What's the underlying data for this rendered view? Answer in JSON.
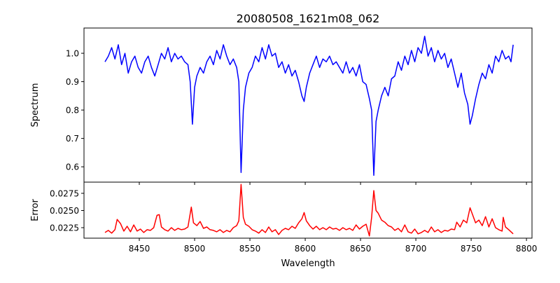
{
  "chart_data": [
    {
      "type": "line",
      "title": "20080508_1621m08_062",
      "xlabel": "",
      "ylabel": "Spectrum",
      "xlim": [
        8400,
        8805
      ],
      "ylim": [
        0.546,
        1.089
      ],
      "color": "#0000ff",
      "xticks": [
        8450,
        8500,
        8550,
        8600,
        8650,
        8700,
        8750,
        8800
      ],
      "yticks": [
        0.6,
        0.7,
        0.8,
        0.9,
        1.0
      ],
      "ytick_labels": [
        "0.6",
        "0.7",
        "0.8",
        "0.9",
        "1.0"
      ],
      "points": [
        [
          8419,
          0.97
        ],
        [
          8422,
          0.99
        ],
        [
          8425,
          1.02
        ],
        [
          8428,
          0.98
        ],
        [
          8431,
          1.03
        ],
        [
          8434,
          0.96
        ],
        [
          8437,
          1.0
        ],
        [
          8440,
          0.93
        ],
        [
          8443,
          0.97
        ],
        [
          8446,
          0.99
        ],
        [
          8449,
          0.95
        ],
        [
          8452,
          0.93
        ],
        [
          8455,
          0.97
        ],
        [
          8458,
          0.99
        ],
        [
          8461,
          0.95
        ],
        [
          8464,
          0.92
        ],
        [
          8467,
          0.96
        ],
        [
          8470,
          1.0
        ],
        [
          8473,
          0.98
        ],
        [
          8476,
          1.02
        ],
        [
          8479,
          0.97
        ],
        [
          8482,
          1.0
        ],
        [
          8485,
          0.98
        ],
        [
          8488,
          0.99
        ],
        [
          8491,
          0.97
        ],
        [
          8494,
          0.96
        ],
        [
          8496,
          0.9
        ],
        [
          8498,
          0.75
        ],
        [
          8500,
          0.88
        ],
        [
          8502,
          0.92
        ],
        [
          8505,
          0.95
        ],
        [
          8508,
          0.93
        ],
        [
          8511,
          0.97
        ],
        [
          8514,
          0.99
        ],
        [
          8517,
          0.96
        ],
        [
          8520,
          1.01
        ],
        [
          8523,
          0.98
        ],
        [
          8526,
          1.03
        ],
        [
          8529,
          0.99
        ],
        [
          8532,
          0.96
        ],
        [
          8535,
          0.98
        ],
        [
          8538,
          0.95
        ],
        [
          8540,
          0.9
        ],
        [
          8542,
          0.58
        ],
        [
          8544,
          0.8
        ],
        [
          8546,
          0.88
        ],
        [
          8549,
          0.93
        ],
        [
          8552,
          0.95
        ],
        [
          8555,
          0.99
        ],
        [
          8558,
          0.97
        ],
        [
          8561,
          1.02
        ],
        [
          8564,
          0.98
        ],
        [
          8567,
          1.03
        ],
        [
          8570,
          0.99
        ],
        [
          8573,
          1.0
        ],
        [
          8576,
          0.95
        ],
        [
          8579,
          0.97
        ],
        [
          8582,
          0.93
        ],
        [
          8585,
          0.96
        ],
        [
          8588,
          0.92
        ],
        [
          8591,
          0.94
        ],
        [
          8594,
          0.9
        ],
        [
          8597,
          0.85
        ],
        [
          8599,
          0.83
        ],
        [
          8601,
          0.88
        ],
        [
          8604,
          0.93
        ],
        [
          8607,
          0.96
        ],
        [
          8610,
          0.99
        ],
        [
          8613,
          0.95
        ],
        [
          8616,
          0.98
        ],
        [
          8619,
          0.97
        ],
        [
          8622,
          0.99
        ],
        [
          8625,
          0.96
        ],
        [
          8628,
          0.97
        ],
        [
          8631,
          0.95
        ],
        [
          8634,
          0.93
        ],
        [
          8637,
          0.97
        ],
        [
          8640,
          0.93
        ],
        [
          8643,
          0.95
        ],
        [
          8646,
          0.92
        ],
        [
          8649,
          0.96
        ],
        [
          8652,
          0.9
        ],
        [
          8655,
          0.89
        ],
        [
          8658,
          0.84
        ],
        [
          8660,
          0.8
        ],
        [
          8662,
          0.57
        ],
        [
          8664,
          0.76
        ],
        [
          8666,
          0.8
        ],
        [
          8669,
          0.85
        ],
        [
          8672,
          0.88
        ],
        [
          8675,
          0.85
        ],
        [
          8678,
          0.91
        ],
        [
          8681,
          0.92
        ],
        [
          8684,
          0.97
        ],
        [
          8687,
          0.94
        ],
        [
          8690,
          0.99
        ],
        [
          8693,
          0.96
        ],
        [
          8696,
          1.01
        ],
        [
          8699,
          0.97
        ],
        [
          8702,
          1.02
        ],
        [
          8705,
          1.0
        ],
        [
          8708,
          1.06
        ],
        [
          8711,
          0.99
        ],
        [
          8714,
          1.02
        ],
        [
          8717,
          0.97
        ],
        [
          8720,
          1.01
        ],
        [
          8723,
          0.98
        ],
        [
          8726,
          1.0
        ],
        [
          8729,
          0.95
        ],
        [
          8732,
          0.98
        ],
        [
          8735,
          0.93
        ],
        [
          8738,
          0.88
        ],
        [
          8741,
          0.93
        ],
        [
          8744,
          0.86
        ],
        [
          8747,
          0.82
        ],
        [
          8749,
          0.75
        ],
        [
          8751,
          0.78
        ],
        [
          8754,
          0.84
        ],
        [
          8757,
          0.89
        ],
        [
          8760,
          0.93
        ],
        [
          8763,
          0.91
        ],
        [
          8766,
          0.96
        ],
        [
          8769,
          0.93
        ],
        [
          8772,
          0.99
        ],
        [
          8775,
          0.97
        ],
        [
          8778,
          1.01
        ],
        [
          8781,
          0.98
        ],
        [
          8784,
          0.99
        ],
        [
          8786,
          0.97
        ],
        [
          8788,
          1.03
        ]
      ]
    },
    {
      "type": "line",
      "title": "",
      "xlabel": "Wavelength",
      "ylabel": "Error",
      "xlim": [
        8400,
        8805
      ],
      "ylim": [
        0.02097,
        0.02913
      ],
      "color": "#ff0000",
      "xticks": [
        8450,
        8500,
        8550,
        8600,
        8650,
        8700,
        8750,
        8800
      ],
      "xtick_labels": [
        "8450",
        "8500",
        "8550",
        "8600",
        "8650",
        "8700",
        "8750",
        "8800"
      ],
      "yticks": [
        0.0225,
        0.025,
        0.0275
      ],
      "ytick_labels": [
        "0.0225",
        "0.0250",
        "0.0275"
      ],
      "points": [
        [
          8419,
          0.0218
        ],
        [
          8422,
          0.0221
        ],
        [
          8425,
          0.0217
        ],
        [
          8428,
          0.0222
        ],
        [
          8430,
          0.0237
        ],
        [
          8433,
          0.0231
        ],
        [
          8436,
          0.022
        ],
        [
          8439,
          0.0227
        ],
        [
          8442,
          0.0219
        ],
        [
          8445,
          0.0229
        ],
        [
          8448,
          0.022
        ],
        [
          8451,
          0.0223
        ],
        [
          8454,
          0.0218
        ],
        [
          8457,
          0.0222
        ],
        [
          8460,
          0.0221
        ],
        [
          8463,
          0.0225
        ],
        [
          8466,
          0.0243
        ],
        [
          8468,
          0.0244
        ],
        [
          8470,
          0.0226
        ],
        [
          8473,
          0.0222
        ],
        [
          8476,
          0.022
        ],
        [
          8479,
          0.0225
        ],
        [
          8482,
          0.0221
        ],
        [
          8485,
          0.0224
        ],
        [
          8488,
          0.0222
        ],
        [
          8491,
          0.0223
        ],
        [
          8494,
          0.0226
        ],
        [
          8497,
          0.0255
        ],
        [
          8499,
          0.0232
        ],
        [
          8502,
          0.0228
        ],
        [
          8505,
          0.0234
        ],
        [
          8508,
          0.0224
        ],
        [
          8511,
          0.0226
        ],
        [
          8514,
          0.0222
        ],
        [
          8517,
          0.0221
        ],
        [
          8520,
          0.0219
        ],
        [
          8523,
          0.0222
        ],
        [
          8526,
          0.0218
        ],
        [
          8529,
          0.0221
        ],
        [
          8532,
          0.0219
        ],
        [
          8535,
          0.0225
        ],
        [
          8538,
          0.0228
        ],
        [
          8540,
          0.0235
        ],
        [
          8542,
          0.0288
        ],
        [
          8544,
          0.024
        ],
        [
          8546,
          0.023
        ],
        [
          8549,
          0.0227
        ],
        [
          8552,
          0.0222
        ],
        [
          8555,
          0.022
        ],
        [
          8558,
          0.0217
        ],
        [
          8561,
          0.0222
        ],
        [
          8564,
          0.0218
        ],
        [
          8567,
          0.0226
        ],
        [
          8570,
          0.0219
        ],
        [
          8573,
          0.0222
        ],
        [
          8576,
          0.0215
        ],
        [
          8579,
          0.0221
        ],
        [
          8582,
          0.0224
        ],
        [
          8585,
          0.0222
        ],
        [
          8588,
          0.0227
        ],
        [
          8591,
          0.0224
        ],
        [
          8594,
          0.0232
        ],
        [
          8597,
          0.0238
        ],
        [
          8599,
          0.0247
        ],
        [
          8601,
          0.0235
        ],
        [
          8604,
          0.0228
        ],
        [
          8607,
          0.0223
        ],
        [
          8610,
          0.0227
        ],
        [
          8613,
          0.0222
        ],
        [
          8616,
          0.0225
        ],
        [
          8619,
          0.0222
        ],
        [
          8622,
          0.0226
        ],
        [
          8625,
          0.0223
        ],
        [
          8628,
          0.0224
        ],
        [
          8631,
          0.0221
        ],
        [
          8634,
          0.0225
        ],
        [
          8637,
          0.0222
        ],
        [
          8640,
          0.0224
        ],
        [
          8643,
          0.0221
        ],
        [
          8646,
          0.0229
        ],
        [
          8649,
          0.0223
        ],
        [
          8652,
          0.0227
        ],
        [
          8655,
          0.023
        ],
        [
          8658,
          0.0213
        ],
        [
          8660,
          0.024
        ],
        [
          8662,
          0.0279
        ],
        [
          8664,
          0.025
        ],
        [
          8666,
          0.0246
        ],
        [
          8669,
          0.0236
        ],
        [
          8672,
          0.0233
        ],
        [
          8675,
          0.0228
        ],
        [
          8678,
          0.0226
        ],
        [
          8681,
          0.0221
        ],
        [
          8684,
          0.0224
        ],
        [
          8687,
          0.0219
        ],
        [
          8690,
          0.0229
        ],
        [
          8693,
          0.0219
        ],
        [
          8696,
          0.0217
        ],
        [
          8699,
          0.0223
        ],
        [
          8702,
          0.0216
        ],
        [
          8705,
          0.0218
        ],
        [
          8708,
          0.0221
        ],
        [
          8711,
          0.0218
        ],
        [
          8714,
          0.0226
        ],
        [
          8717,
          0.0219
        ],
        [
          8720,
          0.0222
        ],
        [
          8723,
          0.0218
        ],
        [
          8726,
          0.0221
        ],
        [
          8729,
          0.022
        ],
        [
          8732,
          0.0223
        ],
        [
          8735,
          0.0222
        ],
        [
          8737,
          0.0233
        ],
        [
          8740,
          0.0226
        ],
        [
          8743,
          0.0236
        ],
        [
          8746,
          0.0232
        ],
        [
          8749,
          0.0254
        ],
        [
          8751,
          0.0245
        ],
        [
          8754,
          0.0232
        ],
        [
          8757,
          0.0236
        ],
        [
          8760,
          0.0228
        ],
        [
          8763,
          0.0241
        ],
        [
          8766,
          0.0226
        ],
        [
          8769,
          0.0238
        ],
        [
          8772,
          0.0225
        ],
        [
          8775,
          0.0222
        ],
        [
          8778,
          0.022
        ],
        [
          8779,
          0.024
        ],
        [
          8781,
          0.0226
        ],
        [
          8784,
          0.0222
        ],
        [
          8786,
          0.0219
        ],
        [
          8788,
          0.0216
        ]
      ]
    }
  ]
}
